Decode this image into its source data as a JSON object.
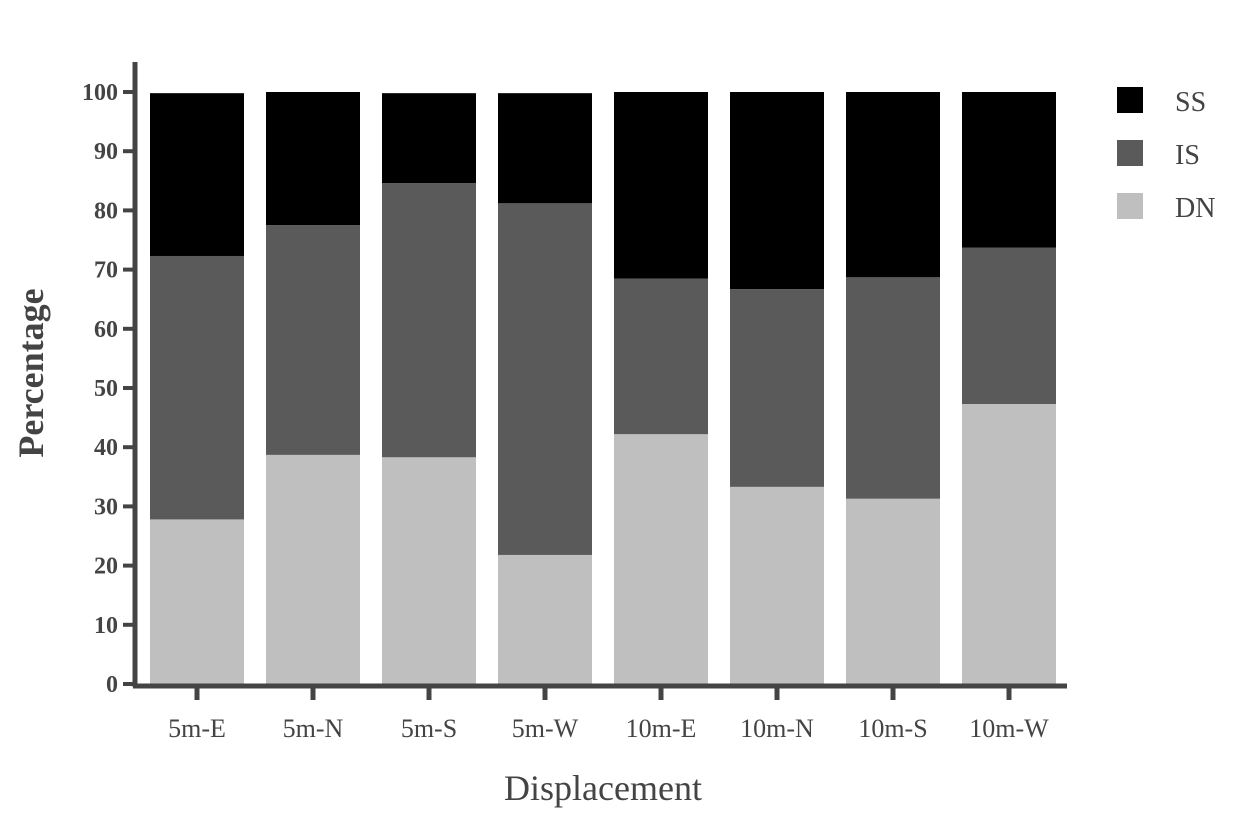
{
  "chart_data": {
    "type": "bar",
    "stacked": true,
    "title": "",
    "xlabel": "Displacement",
    "ylabel": "Percentage",
    "ylim": [
      0,
      100
    ],
    "yticks": [
      0,
      10,
      20,
      30,
      40,
      50,
      60,
      70,
      80,
      90,
      100
    ],
    "grid": false,
    "legend_position": "top-right",
    "categories": [
      "5m-E",
      "5m-N",
      "5m-S",
      "5m-W",
      "10m-E",
      "10m-N",
      "10m-S",
      "10m-W"
    ],
    "series": [
      {
        "name": "DN",
        "color": "#bfbfbf",
        "values": [
          27.8,
          38.7,
          38.3,
          21.8,
          42.2,
          33.3,
          31.3,
          47.3
        ]
      },
      {
        "name": "IS",
        "color": "#5a5a5a",
        "values": [
          44.5,
          38.8,
          46.3,
          59.4,
          26.3,
          33.4,
          37.4,
          26.4
        ]
      },
      {
        "name": "SS",
        "color": "#000000",
        "values": [
          27.5,
          22.5,
          15.2,
          18.6,
          31.5,
          33.3,
          31.3,
          26.3
        ]
      }
    ],
    "legend_order": [
      "SS",
      "IS",
      "DN"
    ],
    "axis_color": "#444444"
  }
}
